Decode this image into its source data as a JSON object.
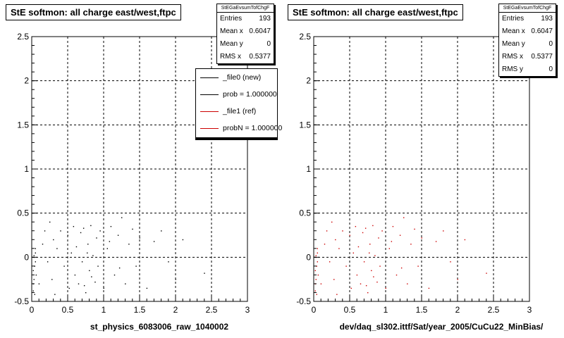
{
  "chart_data": [
    {
      "type": "scatter",
      "title": "StE softmon: all charge east/west,ftpc",
      "xlabel": "st_physics_6083006_raw_1040002",
      "ylabel": "",
      "xlim": [
        0,
        3
      ],
      "ylim": [
        -0.5,
        2.5
      ],
      "x_ticks": [
        "0",
        "0.5",
        "1",
        "1.5",
        "2",
        "2.5",
        "3"
      ],
      "y_ticks": [
        "-0.5",
        "0",
        "0.5",
        "1",
        "1.5",
        "2",
        "2.5"
      ],
      "grid": true,
      "stats": {
        "title": "StEGaEvsumTofChgF",
        "rows": [
          {
            "label": "Entries",
            "value": "193"
          },
          {
            "label": "Mean x",
            "value": "0.6047"
          },
          {
            "label": "Mean y",
            "value": "0"
          },
          {
            "label": "RMS x",
            "value": "0.5377"
          }
        ]
      },
      "legend": [
        {
          "label": "_file0 (new)",
          "color": "#000000"
        },
        {
          "label": "prob = 1.000000",
          "color": "#000000"
        },
        {
          "label": "_file1 (ref)",
          "color": "#cc0000"
        },
        {
          "label": "probN = 1.000000",
          "color": "#cc0000"
        }
      ],
      "series": [
        {
          "color": "#000000",
          "points": [
            [
              0.02,
              -0.38
            ],
            [
              0.03,
              0.02
            ],
            [
              0.02,
              -0.15
            ],
            [
              0.04,
              -0.1
            ],
            [
              0.05,
              0.05
            ],
            [
              0.03,
              -0.25
            ],
            [
              0.02,
              -0.3
            ],
            [
              0.05,
              0.1
            ],
            [
              0.04,
              -0.42
            ],
            [
              0.06,
              -0.2
            ],
            [
              0.03,
              0.0
            ],
            [
              0.05,
              -0.05
            ],
            [
              0.1,
              -0.3
            ],
            [
              0.15,
              0.15
            ],
            [
              0.18,
              0.3
            ],
            [
              0.22,
              -0.05
            ],
            [
              0.25,
              0.4
            ],
            [
              0.3,
              0.2
            ],
            [
              0.32,
              -0.42
            ],
            [
              0.35,
              0.1
            ],
            [
              0.28,
              -0.25
            ],
            [
              0.4,
              0.3
            ],
            [
              0.45,
              -0.1
            ],
            [
              0.5,
              0.25
            ],
            [
              0.52,
              -0.35
            ],
            [
              0.55,
              0.05
            ],
            [
              0.58,
              0.35
            ],
            [
              0.6,
              -0.2
            ],
            [
              0.62,
              0.12
            ],
            [
              0.65,
              -0.3
            ],
            [
              0.68,
              0.28
            ],
            [
              0.7,
              -0.05
            ],
            [
              0.72,
              0.33
            ],
            [
              0.75,
              -0.4
            ],
            [
              0.78,
              0.15
            ],
            [
              0.8,
              -0.15
            ],
            [
              0.82,
              0.36
            ],
            [
              0.85,
              0.02
            ],
            [
              0.88,
              -0.28
            ],
            [
              0.9,
              0.22
            ],
            [
              0.92,
              -0.1
            ],
            [
              0.95,
              0.3
            ],
            [
              1.0,
              -0.35
            ],
            [
              1.05,
              0.1
            ],
            [
              1.1,
              0.35
            ],
            [
              1.15,
              -0.2
            ],
            [
              1.2,
              0.25
            ],
            [
              1.25,
              0.45
            ],
            [
              1.3,
              -0.3
            ],
            [
              1.35,
              0.15
            ],
            [
              1.4,
              0.32
            ],
            [
              1.45,
              -0.1
            ],
            [
              1.5,
              0.22
            ],
            [
              1.6,
              -0.35
            ],
            [
              1.7,
              0.18
            ],
            [
              1.8,
              0.3
            ],
            [
              1.9,
              -0.05
            ],
            [
              2.0,
              -0.25
            ],
            [
              2.1,
              0.2
            ],
            [
              2.4,
              -0.18
            ],
            [
              0.73,
              -0.32
            ],
            [
              0.77,
              0.05
            ],
            [
              0.83,
              -0.22
            ],
            [
              1.08,
              0.18
            ],
            [
              1.22,
              -0.12
            ]
          ]
        }
      ]
    },
    {
      "type": "scatter",
      "title": "StE softmon: all charge east/west,ftpc",
      "xlabel": "dev/daq_sl302.ittf/Sat/year_2005/CuCu22_MinBias/",
      "ylabel": "",
      "xlim": [
        0,
        3
      ],
      "ylim": [
        -0.5,
        2.5
      ],
      "x_ticks": [
        "0",
        "0.5",
        "1",
        "1.5",
        "2",
        "2.5",
        "3"
      ],
      "y_ticks": [
        "-0.5",
        "0",
        "0.5",
        "1",
        "1.5",
        "2",
        "2.5"
      ],
      "grid": true,
      "stats": {
        "title": "StEGaEvsumTofChgF",
        "rows": [
          {
            "label": "Entries",
            "value": "193"
          },
          {
            "label": "Mean x",
            "value": "0.6047"
          },
          {
            "label": "Mean y",
            "value": "0"
          },
          {
            "label": "RMS x",
            "value": "0.5377"
          },
          {
            "label": "RMS y",
            "value": "0"
          }
        ]
      },
      "series": [
        {
          "color": "#cc0000",
          "points": [
            [
              0.02,
              -0.38
            ],
            [
              0.03,
              0.02
            ],
            [
              0.02,
              -0.15
            ],
            [
              0.04,
              -0.1
            ],
            [
              0.05,
              0.05
            ],
            [
              0.03,
              -0.25
            ],
            [
              0.02,
              -0.3
            ],
            [
              0.05,
              0.1
            ],
            [
              0.04,
              -0.42
            ],
            [
              0.06,
              -0.2
            ],
            [
              0.03,
              0.0
            ],
            [
              0.05,
              -0.05
            ],
            [
              0.1,
              -0.3
            ],
            [
              0.15,
              0.15
            ],
            [
              0.18,
              0.3
            ],
            [
              0.22,
              -0.05
            ],
            [
              0.25,
              0.4
            ],
            [
              0.3,
              0.2
            ],
            [
              0.32,
              -0.42
            ],
            [
              0.35,
              0.1
            ],
            [
              0.28,
              -0.25
            ],
            [
              0.4,
              0.3
            ],
            [
              0.45,
              -0.1
            ],
            [
              0.5,
              0.25
            ],
            [
              0.52,
              -0.35
            ],
            [
              0.55,
              0.05
            ],
            [
              0.58,
              0.35
            ],
            [
              0.6,
              -0.2
            ],
            [
              0.62,
              0.12
            ],
            [
              0.65,
              -0.3
            ],
            [
              0.68,
              0.28
            ],
            [
              0.7,
              -0.05
            ],
            [
              0.72,
              0.33
            ],
            [
              0.75,
              -0.4
            ],
            [
              0.78,
              0.15
            ],
            [
              0.8,
              -0.15
            ],
            [
              0.82,
              0.36
            ],
            [
              0.85,
              0.02
            ],
            [
              0.88,
              -0.28
            ],
            [
              0.9,
              0.22
            ],
            [
              0.92,
              -0.1
            ],
            [
              0.95,
              0.3
            ],
            [
              1.0,
              -0.35
            ],
            [
              1.05,
              0.1
            ],
            [
              1.1,
              0.35
            ],
            [
              1.15,
              -0.2
            ],
            [
              1.2,
              0.25
            ],
            [
              1.25,
              0.45
            ],
            [
              1.3,
              -0.3
            ],
            [
              1.35,
              0.15
            ],
            [
              1.4,
              0.32
            ],
            [
              1.45,
              -0.1
            ],
            [
              1.5,
              0.22
            ],
            [
              1.6,
              -0.35
            ],
            [
              1.7,
              0.18
            ],
            [
              1.8,
              0.3
            ],
            [
              1.9,
              -0.05
            ],
            [
              2.0,
              -0.25
            ],
            [
              2.1,
              0.2
            ],
            [
              2.4,
              -0.18
            ],
            [
              0.73,
              -0.32
            ],
            [
              0.77,
              0.05
            ],
            [
              0.83,
              -0.22
            ],
            [
              1.08,
              0.18
            ],
            [
              1.22,
              -0.12
            ]
          ]
        }
      ]
    }
  ]
}
